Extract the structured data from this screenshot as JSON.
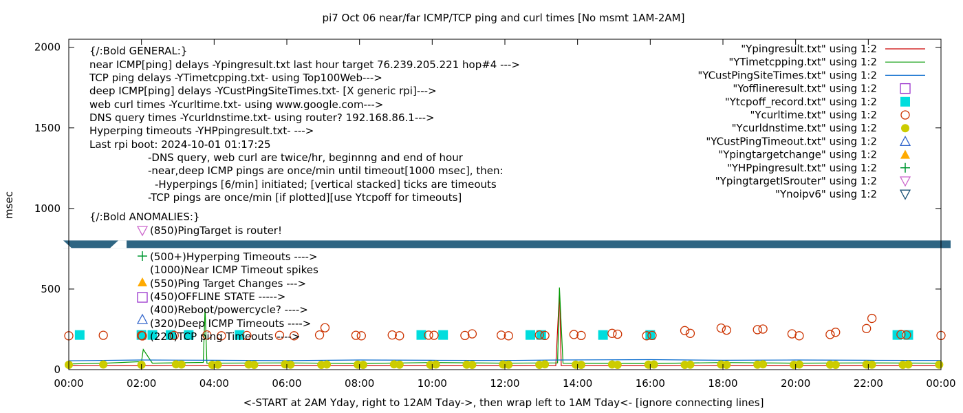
{
  "chart_data": {
    "type": "scatter",
    "title": "pi7 Oct 06  near/far ICMP/TCP ping and curl times [No msmt 1AM-2AM]",
    "xlabel": "<-START at 2AM Yday, right to 12AM Tday->, then wrap left to 1AM Tday<- [ignore connecting lines]",
    "ylabel": "msec",
    "xlim": [
      0,
      24
    ],
    "ylim": [
      0,
      2050
    ],
    "x_ticks": [
      {
        "v": 0,
        "label": "00:00"
      },
      {
        "v": 2,
        "label": "02:00"
      },
      {
        "v": 4,
        "label": "04:00"
      },
      {
        "v": 6,
        "label": "06:00"
      },
      {
        "v": 8,
        "label": "08:00"
      },
      {
        "v": 10,
        "label": "10:00"
      },
      {
        "v": 12,
        "label": "12:00"
      },
      {
        "v": 14,
        "label": "14:00"
      },
      {
        "v": 16,
        "label": "16:00"
      },
      {
        "v": 18,
        "label": "18:00"
      },
      {
        "v": 20,
        "label": "20:00"
      },
      {
        "v": 22,
        "label": "22:00"
      },
      {
        "v": 24,
        "label": "00:00"
      }
    ],
    "y_ticks": [
      {
        "v": 0,
        "label": "0"
      },
      {
        "v": 500,
        "label": "500"
      },
      {
        "v": 1000,
        "label": "1000"
      },
      {
        "v": 1500,
        "label": "1500"
      },
      {
        "v": 2000,
        "label": "2000"
      }
    ],
    "grid": false,
    "legend_position": "top-right",
    "annotations": [
      "{/:Bold GENERAL:}",
      "near ICMP[ping] delays -Ypingresult.txt last hour target 76.239.205.221 hop#4 --->",
      "TCP ping delays -YTimetcpping.txt- using Top100Web--->",
      "deep ICMP[ping] delays -YCustPingSiteTimes.txt- [X generic rpi]--->",
      "web curl times -Ycurltime.txt- using www.google.com--->",
      "DNS query times -Ycurldnstime.txt- using router? 192.168.86.1--->",
      "Hyperping timeouts -YHPpingresult.txt- --->",
      "Last rpi boot: 2024-10-01 01:17:25",
      "-DNS query, web curl are twice/hr, beginnng and end of hour",
      "-near,deep ICMP pings are once/min until timeout[1000 msec], then:",
      "-Hyperpings [6/min] initiated; [vertical stacked] ticks are timeouts",
      "-TCP pings are once/min [if plotted][use Ytcpoff for timeouts]",
      "{/:Bold ANOMALIES:}",
      "(850)PingTarget is router!",
      "(500+)Hyperping Timeouts ---->",
      "(1000)Near ICMP Timeout spikes",
      "(550)Ping Target Changes --->",
      "(450)OFFLINE STATE ----->",
      "(400)Reboot/powercycle? ---->",
      "(320)Deep ICMP Timeouts ---->",
      "(220)TCP ping Timeouts ---->"
    ],
    "no_ipv6_band_y": 780,
    "series": [
      {
        "name": "\"Ypingresult.txt\" using 1:2",
        "style": "line",
        "color": "#cc0000",
        "points": [
          [
            0,
            25
          ],
          [
            2,
            24
          ],
          [
            4,
            26
          ],
          [
            6,
            25
          ],
          [
            8,
            24
          ],
          [
            10,
            25
          ],
          [
            12,
            24
          ],
          [
            13.4,
            25
          ],
          [
            13.5,
            480
          ],
          [
            13.55,
            25
          ],
          [
            16,
            24
          ],
          [
            18,
            25
          ],
          [
            20,
            24
          ],
          [
            22,
            25
          ],
          [
            24,
            25
          ]
        ]
      },
      {
        "name": "\"YTimetcpping.txt\" using 1:2",
        "style": "line",
        "color": "#009900",
        "points": [
          [
            0,
            35
          ],
          [
            1,
            40
          ],
          [
            2,
            50
          ],
          [
            2.05,
            125
          ],
          [
            2.3,
            40
          ],
          [
            3.7,
            45
          ],
          [
            3.75,
            380
          ],
          [
            3.8,
            40
          ],
          [
            6,
            42
          ],
          [
            8,
            38
          ],
          [
            10,
            44
          ],
          [
            12,
            40
          ],
          [
            13.45,
            42
          ],
          [
            13.5,
            510
          ],
          [
            13.6,
            40
          ],
          [
            16,
            38
          ],
          [
            18,
            44
          ],
          [
            20,
            40
          ],
          [
            22,
            42
          ],
          [
            24,
            40
          ]
        ]
      },
      {
        "name": "\"YCustPingSiteTimes.txt\" using 1:2",
        "style": "line",
        "color": "#0066cc",
        "points": [
          [
            0,
            55
          ],
          [
            2,
            60
          ],
          [
            4,
            58
          ],
          [
            6,
            56
          ],
          [
            8,
            60
          ],
          [
            10,
            58
          ],
          [
            12,
            57
          ],
          [
            13.5,
            60
          ],
          [
            16,
            62
          ],
          [
            18,
            58
          ],
          [
            20,
            60
          ],
          [
            22,
            58
          ],
          [
            24,
            57
          ]
        ]
      },
      {
        "name": "\"Yofflineresult.txt\" using 1:2",
        "style": "marker",
        "marker": "open-square",
        "color": "#9933cc",
        "points": []
      },
      {
        "name": "\"Ytcpoff_record.txt\" using 1:2",
        "style": "marker",
        "marker": "filled-square",
        "color": "#00dddd",
        "points": [
          [
            0.3,
            215
          ],
          [
            2.0,
            215
          ],
          [
            2.3,
            215
          ],
          [
            2.8,
            215
          ],
          [
            3.3,
            215
          ],
          [
            4.7,
            215
          ],
          [
            9.7,
            215
          ],
          [
            10.3,
            215
          ],
          [
            12.7,
            215
          ],
          [
            13.0,
            215
          ],
          [
            14.7,
            215
          ],
          [
            16.0,
            215
          ],
          [
            22.8,
            215
          ],
          [
            23.1,
            215
          ]
        ]
      },
      {
        "name": "\"Ycurltime.txt\" using 1:2",
        "style": "marker",
        "marker": "open-circle",
        "color": "#cc3300",
        "points": [
          [
            0.0,
            210
          ],
          [
            0.95,
            213
          ],
          [
            2.0,
            212
          ],
          [
            2.9,
            212
          ],
          [
            3.8,
            215
          ],
          [
            4.2,
            210
          ],
          [
            4.9,
            212
          ],
          [
            5.8,
            213
          ],
          [
            6.2,
            210
          ],
          [
            6.9,
            215
          ],
          [
            7.05,
            260
          ],
          [
            7.9,
            213
          ],
          [
            8.05,
            210
          ],
          [
            8.9,
            215
          ],
          [
            9.1,
            210
          ],
          [
            9.9,
            214
          ],
          [
            10.05,
            213
          ],
          [
            10.9,
            212
          ],
          [
            11.1,
            222
          ],
          [
            11.9,
            214
          ],
          [
            12.1,
            210
          ],
          [
            12.95,
            215
          ],
          [
            13.1,
            212
          ],
          [
            13.9,
            218
          ],
          [
            14.1,
            212
          ],
          [
            14.95,
            225
          ],
          [
            15.1,
            220
          ],
          [
            15.9,
            210
          ],
          [
            16.05,
            212
          ],
          [
            16.95,
            242
          ],
          [
            17.1,
            225
          ],
          [
            17.95,
            258
          ],
          [
            18.1,
            245
          ],
          [
            18.95,
            248
          ],
          [
            19.1,
            252
          ],
          [
            19.9,
            222
          ],
          [
            20.1,
            210
          ],
          [
            20.95,
            218
          ],
          [
            21.1,
            232
          ],
          [
            21.95,
            255
          ],
          [
            22.1,
            318
          ],
          [
            22.9,
            218
          ],
          [
            23.05,
            215
          ],
          [
            24.0,
            212
          ]
        ]
      },
      {
        "name": "\"Ycurldnstime.txt\" using 1:2",
        "style": "marker",
        "marker": "filled-circle",
        "color": "#cccc00",
        "points": [
          [
            0.0,
            30
          ],
          [
            0.95,
            32
          ],
          [
            2.0,
            30
          ],
          [
            2.95,
            33
          ],
          [
            3.1,
            32
          ],
          [
            3.95,
            30
          ],
          [
            4.1,
            31
          ],
          [
            4.95,
            32
          ],
          [
            5.1,
            30
          ],
          [
            5.95,
            33
          ],
          [
            6.1,
            31
          ],
          [
            6.95,
            30
          ],
          [
            7.1,
            32
          ],
          [
            7.95,
            31
          ],
          [
            8.1,
            30
          ],
          [
            8.95,
            33
          ],
          [
            9.1,
            31
          ],
          [
            9.95,
            30
          ],
          [
            10.1,
            32
          ],
          [
            10.95,
            31
          ],
          [
            11.1,
            30
          ],
          [
            11.95,
            32
          ],
          [
            12.1,
            31
          ],
          [
            12.95,
            30
          ],
          [
            13.1,
            33
          ],
          [
            13.95,
            31
          ],
          [
            14.1,
            30
          ],
          [
            14.95,
            32
          ],
          [
            15.1,
            30
          ],
          [
            15.95,
            31
          ],
          [
            16.1,
            32
          ],
          [
            16.95,
            30
          ],
          [
            17.1,
            31
          ],
          [
            17.95,
            32
          ],
          [
            18.1,
            30
          ],
          [
            18.95,
            31
          ],
          [
            19.1,
            33
          ],
          [
            19.95,
            30
          ],
          [
            20.1,
            32
          ],
          [
            20.95,
            31
          ],
          [
            21.1,
            30
          ],
          [
            21.95,
            32
          ],
          [
            22.1,
            31
          ],
          [
            22.95,
            30
          ],
          [
            23.1,
            32
          ],
          [
            23.95,
            31
          ]
        ]
      },
      {
        "name": "\"YCustPingTimeout.txt\" using 1:2",
        "style": "marker",
        "marker": "open-triangle-up",
        "color": "#3366cc",
        "points": []
      },
      {
        "name": "\"Ypingtargetchange\" using 1:2",
        "style": "marker",
        "marker": "filled-triangle-up",
        "color": "#ffaa00",
        "points": []
      },
      {
        "name": "\"YHPpingresult.txt\" using 1:2",
        "style": "marker",
        "marker": "plus",
        "color": "#009933",
        "points": []
      },
      {
        "name": "\"YpingtargetISrouter\" using 1:2",
        "style": "marker",
        "marker": "open-triangle-down",
        "color": "#cc66cc",
        "points": []
      },
      {
        "name": "\"Ynoipv6\" using 1:2",
        "style": "marker",
        "marker": "open-triangle-down",
        "color": "#1a5276",
        "points": []
      }
    ]
  }
}
